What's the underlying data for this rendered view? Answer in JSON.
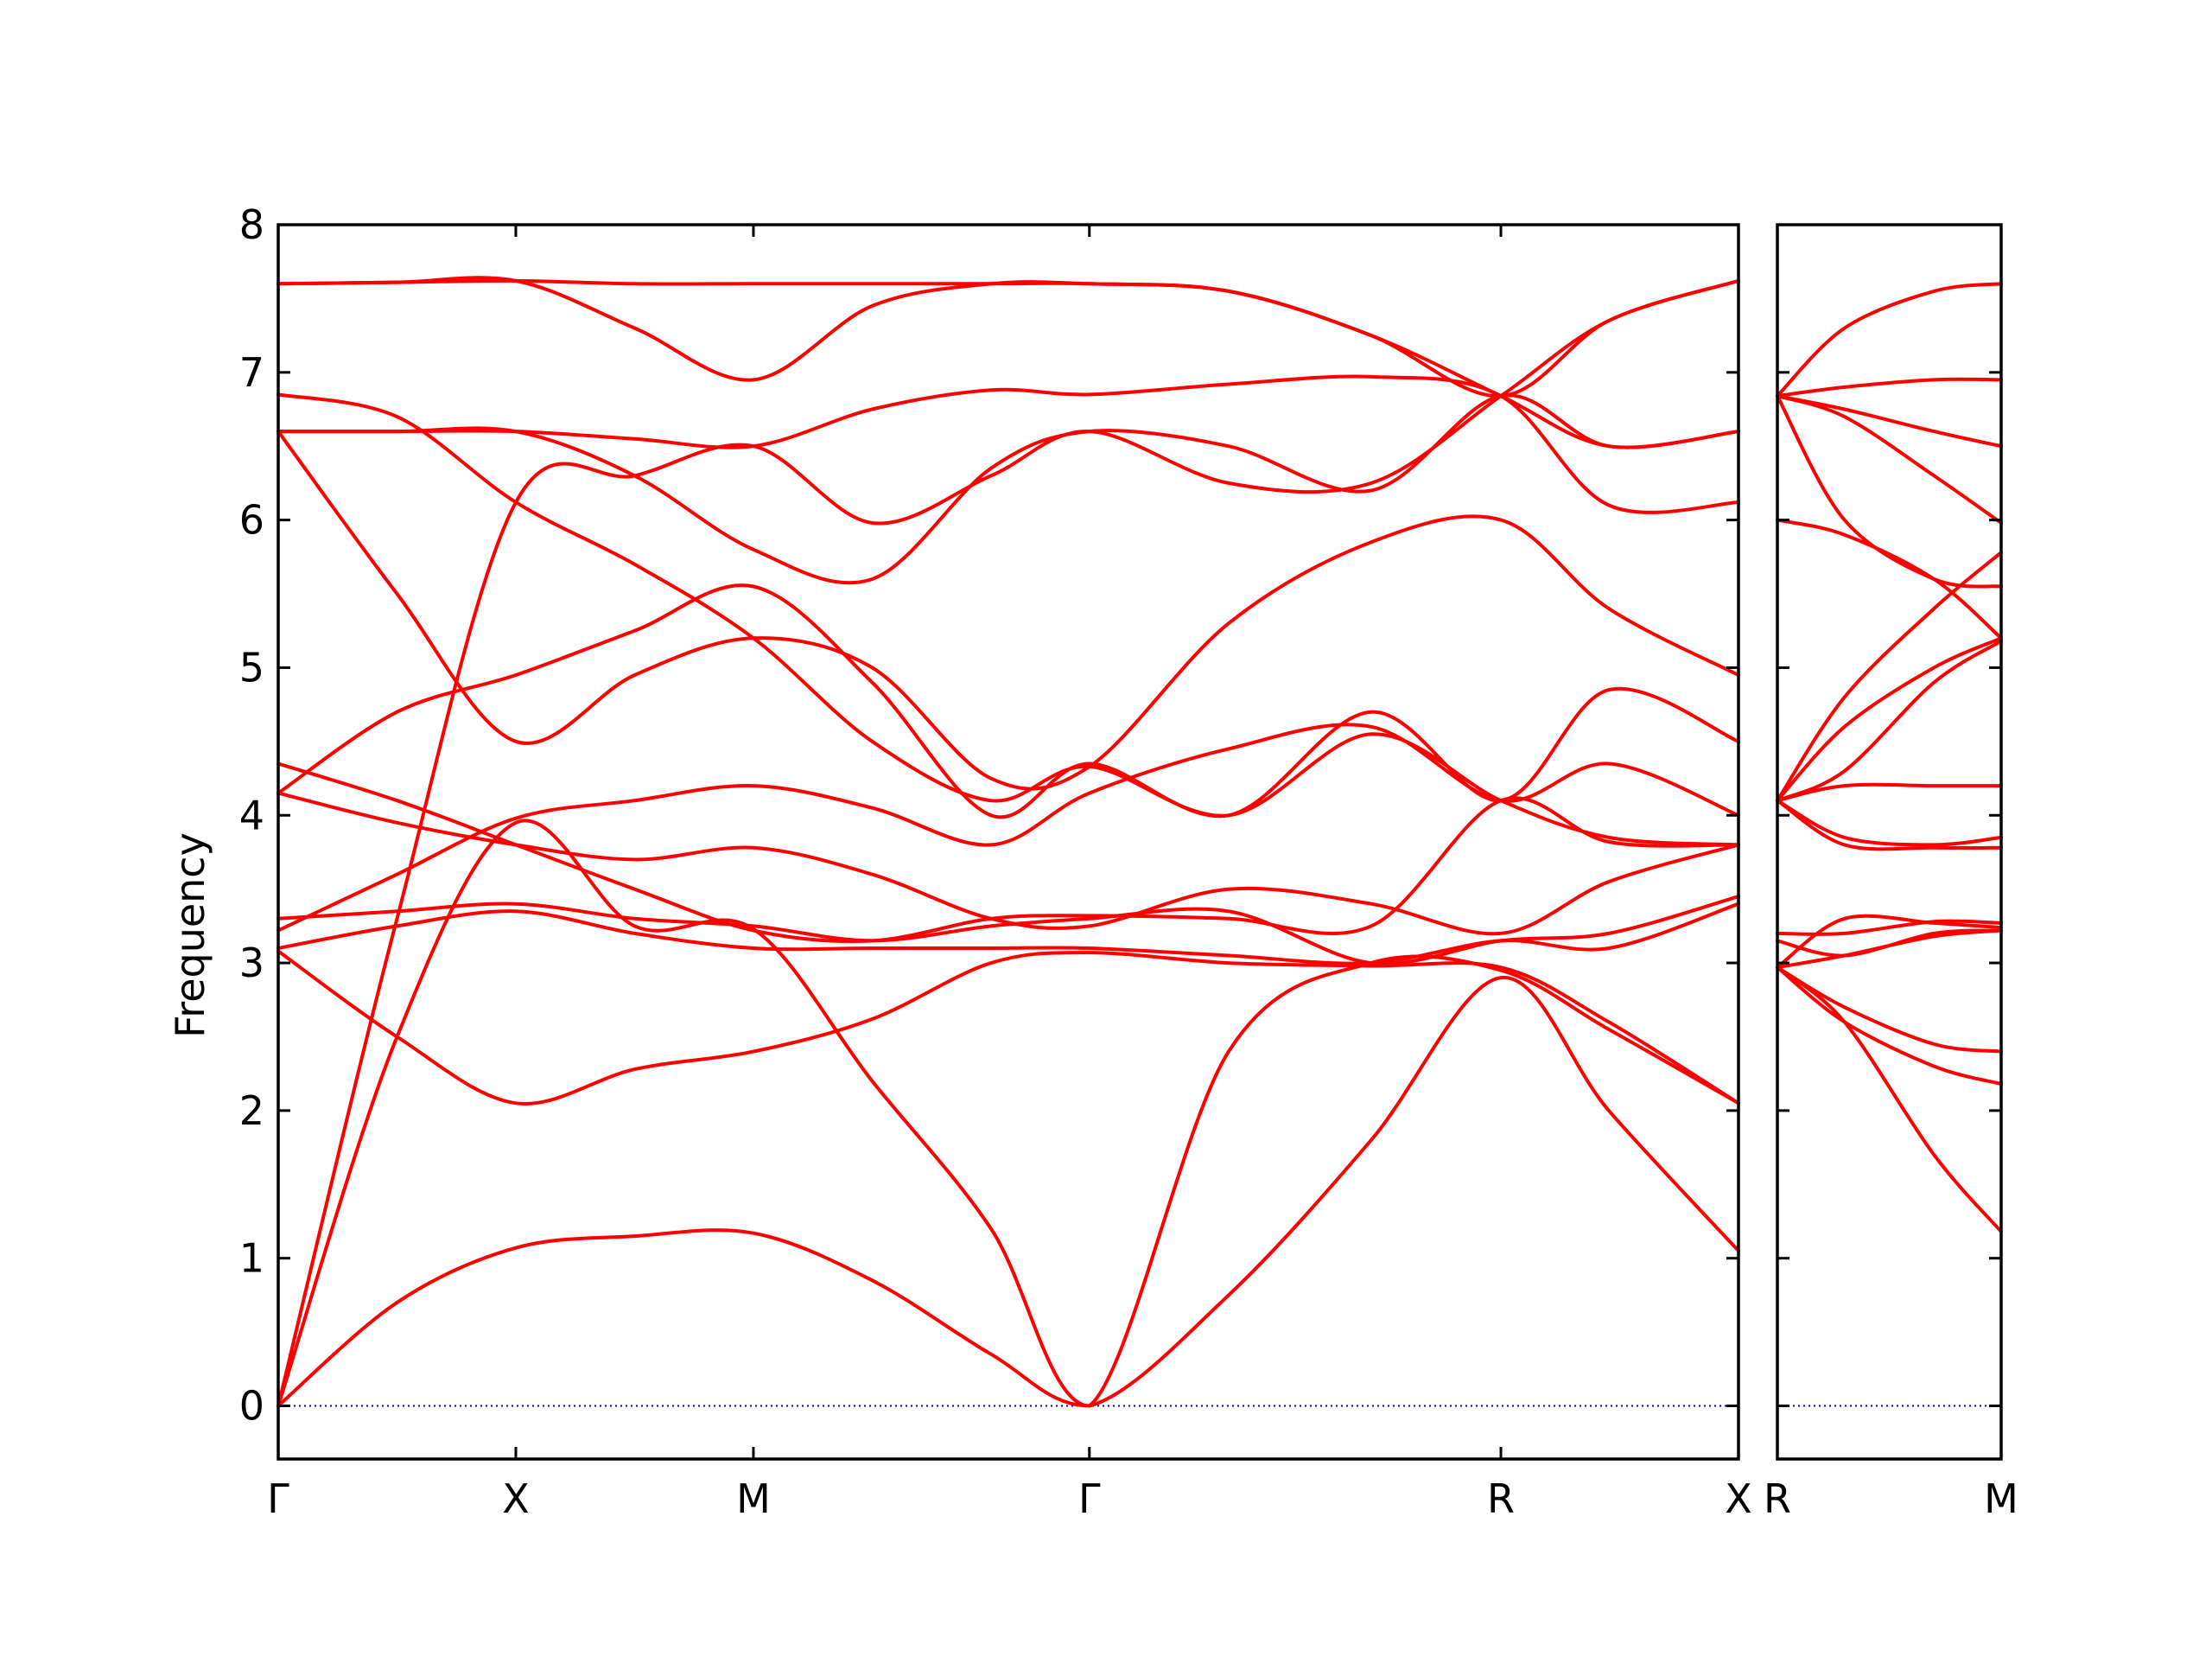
{
  "chart_data": {
    "type": "line",
    "ylabel": "Frequency",
    "ylim": [
      -0.36,
      8
    ],
    "yticks": [
      0,
      1,
      2,
      3,
      4,
      5,
      6,
      7,
      8
    ],
    "grid": false,
    "legend": "none",
    "colors": {
      "bands": "#ff0000",
      "zero_line": "#0000cc",
      "frame": "#000000"
    },
    "panels": [
      {
        "name": "main",
        "x_labels": [
          "Γ",
          "X",
          "M",
          "Γ",
          "R",
          "X"
        ],
        "x_positions": [
          0,
          1,
          2,
          3.414,
          5.146,
          6.146
        ],
        "series": [
          {
            "x": [
              0,
              0.5,
              1,
              1.5,
              2,
              2.5,
              3.0,
              3.414,
              4.0,
              4.6,
              5.146,
              5.6,
              6.146
            ],
            "y": [
              0,
              0.7,
              1.07,
              1.15,
              1.17,
              0.85,
              0.35,
              0,
              0.75,
              1.8,
              2.9,
              2.0,
              1.05
            ]
          },
          {
            "x": [
              0,
              0.5,
              1,
              1.5,
              2,
              2.5,
              3.0,
              3.414,
              4.0,
              4.6,
              5.146,
              5.6,
              6.146
            ],
            "y": [
              0,
              2.5,
              3.95,
              3.25,
              3.23,
              2.2,
              1.2,
              0,
              2.4,
              3.0,
              2.95,
              2.55,
              2.05
            ]
          },
          {
            "x": [
              0,
              0.5,
              1,
              1.5,
              2,
              2.5,
              3.0,
              3.414,
              4.0,
              4.6,
              5.146,
              5.6,
              6.146
            ],
            "y": [
              0,
              3.3,
              6.12,
              6.3,
              6.5,
              5.98,
              6.3,
              6.6,
              6.25,
              6.25,
              6.84,
              7.35,
              7.62
            ]
          },
          {
            "x": [
              0,
              0.5,
              1,
              1.5,
              2,
              2.5,
              3.0,
              3.414,
              4.0,
              4.6,
              5.146,
              5.6,
              6.146
            ],
            "y": [
              3.08,
              2.5,
              2.05,
              2.28,
              2.4,
              2.62,
              3.0,
              3.07,
              3.0,
              2.98,
              2.97,
              2.6,
              2.05
            ]
          },
          {
            "x": [
              0,
              0.5,
              1,
              1.5,
              2,
              2.5,
              3.0,
              3.414,
              4.0,
              4.6,
              5.146,
              5.6,
              6.146
            ],
            "y": [
              3.1,
              3.25,
              3.35,
              3.2,
              3.1,
              3.1,
              3.1,
              3.1,
              3.05,
              3.0,
              3.15,
              3.1,
              3.4
            ]
          },
          {
            "x": [
              0,
              0.5,
              1,
              1.5,
              2,
              2.5,
              3.0,
              3.414,
              4.0,
              4.6,
              5.146,
              5.6,
              6.146
            ],
            "y": [
              3.3,
              3.35,
              3.4,
              3.3,
              3.25,
              3.15,
              3.25,
              3.3,
              3.35,
              3.0,
              3.15,
              3.2,
              3.45
            ]
          },
          {
            "x": [
              0,
              0.5,
              1,
              1.5,
              2,
              2.5,
              3.0,
              3.414,
              4.0,
              4.6,
              5.146,
              5.6,
              6.146
            ],
            "y": [
              4.15,
              3.95,
              3.8,
              3.7,
              3.78,
              3.6,
              3.3,
              3.25,
              3.5,
              3.4,
              3.2,
              3.55,
              3.8
            ]
          },
          {
            "x": [
              0,
              0.5,
              1,
              1.5,
              2,
              2.5,
              3.0,
              3.414,
              4.0,
              4.6,
              5.146,
              5.6,
              6.146
            ],
            "y": [
              4.35,
              4.1,
              3.8,
              3.5,
              3.22,
              3.15,
              3.3,
              3.32,
              3.3,
              3.25,
              4.1,
              3.82,
              3.8
            ]
          },
          {
            "x": [
              0,
              0.5,
              1,
              1.5,
              2,
              2.5,
              3.0,
              3.414,
              4.0,
              4.6,
              5.146,
              5.6,
              6.146
            ],
            "y": [
              3.22,
              3.6,
              3.98,
              4.1,
              4.2,
              4.05,
              3.8,
              4.15,
              4.45,
              4.6,
              4.1,
              4.35,
              4.0
            ]
          },
          {
            "x": [
              0,
              0.5,
              1,
              1.5,
              2,
              2.5,
              3.0,
              3.414,
              4.0,
              4.6,
              5.146,
              5.6,
              6.146
            ],
            "y": [
              4.15,
              4.7,
              4.95,
              5.25,
              5.55,
              4.9,
              4.0,
              4.35,
              4.0,
              4.7,
              4.1,
              4.85,
              4.5
            ]
          },
          {
            "x": [
              0,
              0.5,
              1,
              1.5,
              2,
              2.5,
              3.0,
              3.414,
              4.0,
              4.6,
              5.146,
              5.6,
              6.146
            ],
            "y": [
              6.6,
              5.5,
              4.5,
              4.95,
              5.2,
              5.0,
              4.25,
              4.33,
              5.3,
              5.85,
              6.0,
              5.4,
              4.95
            ]
          },
          {
            "x": [
              0,
              0.5,
              1,
              1.5,
              2,
              2.5,
              3.0,
              3.414,
              4.0,
              4.6,
              5.146,
              5.6,
              6.146
            ],
            "y": [
              6.85,
              6.7,
              6.12,
              5.7,
              5.2,
              4.5,
              4.1,
              4.33,
              4.0,
              4.55,
              4.1,
              3.85,
              3.8
            ]
          },
          {
            "x": [
              0,
              0.5,
              1,
              1.5,
              2,
              2.5,
              3.0,
              3.414,
              4.0,
              4.6,
              5.146,
              5.6,
              6.146
            ],
            "y": [
              6.6,
              6.6,
              6.6,
              6.3,
              5.8,
              5.6,
              6.35,
              6.6,
              6.5,
              6.2,
              6.84,
              6.5,
              6.6
            ]
          },
          {
            "x": [
              0,
              0.5,
              1,
              1.5,
              2,
              2.5,
              3.0,
              3.414,
              4.0,
              4.6,
              5.146,
              5.6,
              6.146
            ],
            "y": [
              6.6,
              6.6,
              6.6,
              6.55,
              6.5,
              6.75,
              6.88,
              6.85,
              6.92,
              6.97,
              6.84,
              6.1,
              6.12
            ]
          },
          {
            "x": [
              0,
              0.5,
              1,
              1.5,
              2,
              2.5,
              3.0,
              3.414,
              4.0,
              4.6,
              5.146,
              5.6,
              6.146
            ],
            "y": [
              7.6,
              7.61,
              7.62,
              7.3,
              6.95,
              7.45,
              7.6,
              7.6,
              7.55,
              7.25,
              6.84,
              6.5,
              6.6
            ]
          },
          {
            "x": [
              0,
              0.5,
              1,
              1.5,
              2,
              2.5,
              3.0,
              3.414,
              4.0,
              4.6,
              5.146,
              5.6,
              6.146
            ],
            "y": [
              7.6,
              7.61,
              7.62,
              7.6,
              7.6,
              7.6,
              7.6,
              7.6,
              7.55,
              7.25,
              6.84,
              7.35,
              7.62
            ]
          }
        ]
      },
      {
        "name": "right",
        "x_labels": [
          "R",
          "M"
        ],
        "x_positions": [
          0,
          1
        ],
        "series": [
          {
            "x": [
              0,
              0.3,
              0.7,
              1
            ],
            "y": [
              6.84,
              7.3,
              7.55,
              7.6
            ]
          },
          {
            "x": [
              0,
              0.3,
              0.7,
              1
            ],
            "y": [
              6.84,
              6.9,
              6.95,
              6.95
            ]
          },
          {
            "x": [
              0,
              0.3,
              0.7,
              1
            ],
            "y": [
              6.84,
              6.75,
              6.6,
              6.5
            ]
          },
          {
            "x": [
              0,
              0.3,
              0.7,
              1
            ],
            "y": [
              6.84,
              6.7,
              6.3,
              5.98
            ]
          },
          {
            "x": [
              0,
              0.3,
              0.7,
              1
            ],
            "y": [
              6.84,
              6.0,
              5.6,
              5.55
            ]
          },
          {
            "x": [
              0,
              0.3,
              0.7,
              1
            ],
            "y": [
              6.0,
              5.9,
              5.6,
              5.2
            ]
          },
          {
            "x": [
              0,
              0.3,
              0.7,
              1
            ],
            "y": [
              4.1,
              4.8,
              5.4,
              5.78
            ]
          },
          {
            "x": [
              0,
              0.3,
              0.7,
              1
            ],
            "y": [
              4.1,
              4.6,
              5.0,
              5.2
            ]
          },
          {
            "x": [
              0,
              0.3,
              0.7,
              1
            ],
            "y": [
              4.1,
              4.3,
              4.9,
              5.18
            ]
          },
          {
            "x": [
              0,
              0.3,
              0.7,
              1
            ],
            "y": [
              4.1,
              4.2,
              4.2,
              4.2
            ]
          },
          {
            "x": [
              0,
              0.3,
              0.7,
              1
            ],
            "y": [
              4.1,
              3.85,
              3.8,
              3.85
            ]
          },
          {
            "x": [
              0,
              0.3,
              0.7,
              1
            ],
            "y": [
              4.1,
              3.8,
              3.78,
              3.78
            ]
          },
          {
            "x": [
              0,
              0.3,
              0.7,
              1
            ],
            "y": [
              3.2,
              3.2,
              3.28,
              3.27
            ]
          },
          {
            "x": [
              0,
              0.3,
              0.7,
              1
            ],
            "y": [
              2.97,
              3.3,
              3.27,
              3.24
            ]
          },
          {
            "x": [
              0,
              0.3,
              0.7,
              1
            ],
            "y": [
              3.15,
              3.05,
              3.2,
              3.22
            ]
          },
          {
            "x": [
              0,
              0.3,
              0.7,
              1
            ],
            "y": [
              2.97,
              3.05,
              3.18,
              3.22
            ]
          },
          {
            "x": [
              0,
              0.3,
              0.7,
              1
            ],
            "y": [
              2.97,
              2.7,
              2.45,
              2.4
            ]
          },
          {
            "x": [
              0,
              0.3,
              0.7,
              1
            ],
            "y": [
              2.97,
              2.6,
              2.3,
              2.18
            ]
          },
          {
            "x": [
              0,
              0.3,
              0.7,
              1
            ],
            "y": [
              2.97,
              2.6,
              1.7,
              1.18
            ]
          }
        ]
      }
    ]
  }
}
